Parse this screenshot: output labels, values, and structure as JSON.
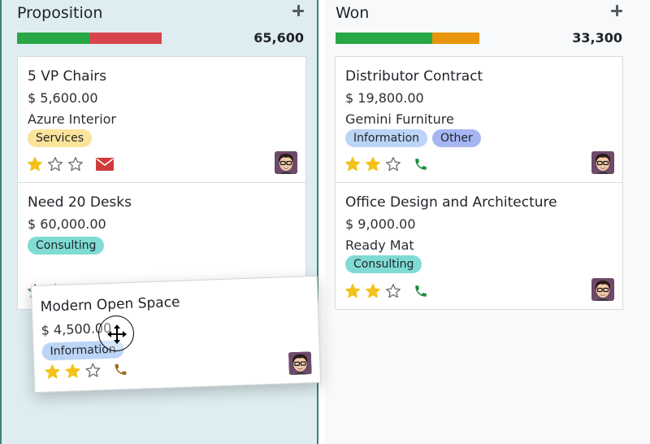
{
  "colors": {
    "green": "#28a745",
    "red": "#d9454f",
    "orange": "#e8940c",
    "star_gold": "#f3c21a",
    "star_empty": "#6b7075",
    "mail_red": "#d13b3b",
    "mail_green": "#1a8c3a",
    "phone_green": "#1a8c3a",
    "phone_brown": "#9a6a1e",
    "tag_services": "#fbe39b",
    "tag_consulting": "#7fdbd4",
    "tag_information": "#bcd5f6",
    "tag_other": "#a6b6f3"
  },
  "columns": [
    {
      "title": "Proposition",
      "total": "65,600",
      "progress": [
        {
          "color": "#28a745",
          "fraction": 0.5
        },
        {
          "color": "#d9454f",
          "fraction": 0.5
        }
      ],
      "cards": [
        {
          "title": "5 VP Chairs",
          "amount": "$ 5,600.00",
          "company": "Azure Interior",
          "tags": [
            {
              "label": "Services",
              "color": "#fbe39b"
            }
          ],
          "stars": 1,
          "activity": "envelope-icon",
          "activity_color": "#d13b3b"
        },
        {
          "title": "Need 20 Desks",
          "amount": "$ 60,000.00",
          "company": "",
          "tags": [
            {
              "label": "Consulting",
              "color": "#7fdbd4"
            }
          ],
          "stars": 0,
          "activity": "envelope-icon",
          "activity_color": "#1a8c3a"
        }
      ]
    },
    {
      "title": "Won",
      "total": "33,300",
      "progress": [
        {
          "color": "#28a745",
          "fraction": 0.67
        },
        {
          "color": "#e8940c",
          "fraction": 0.33
        }
      ],
      "cards": [
        {
          "title": "Distributor Contract",
          "amount": "$ 19,800.00",
          "company": "Gemini Furniture",
          "tags": [
            {
              "label": "Information",
              "color": "#bcd5f6"
            },
            {
              "label": "Other",
              "color": "#a6b6f3"
            }
          ],
          "stars": 2,
          "activity": "phone-icon",
          "activity_color": "#1a8c3a"
        },
        {
          "title": "Office Design and Architecture",
          "amount": "$ 9,000.00",
          "company": "Ready Mat",
          "tags": [
            {
              "label": "Consulting",
              "color": "#7fdbd4"
            }
          ],
          "stars": 2,
          "activity": "phone-icon",
          "activity_color": "#1a8c3a"
        }
      ]
    }
  ],
  "dragged_card": {
    "title": "Modern Open Space",
    "amount": "$ 4,500.00",
    "company": "",
    "tags": [
      {
        "label": "Information",
        "color": "#bcd5f6"
      }
    ],
    "stars": 2,
    "activity": "phone-icon",
    "activity_color": "#9a6a1e"
  }
}
